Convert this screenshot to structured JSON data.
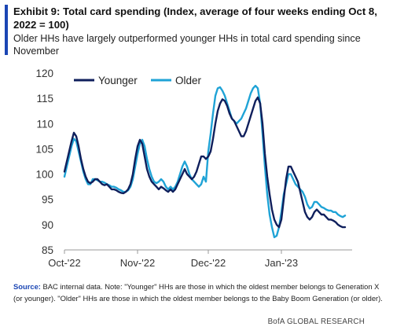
{
  "header": {
    "title": "Exhibit 9: Total card spending (Index, average of four weeks ending Oct 8, 2022 = 100)",
    "subtitle": "Older HHs have largely outperformed younger HHs in total card spending since November"
  },
  "footer": {
    "source_label": "Source:",
    "source_text": "BAC internal data. Note: \"Younger\" HHs are those in which the oldest member belongs to Generation X (or younger). \"Older\" HHs are those in which the oldest member belongs to the Baby Boom Generation (or older).",
    "credit": "BofA GLOBAL RESEARCH"
  },
  "colors": {
    "accent": "#1b46b4",
    "younger": "#0f1f5c",
    "older": "#1fa3d6",
    "axis_text": "#333333",
    "axis_line": "#999999"
  },
  "chart_data": {
    "type": "line",
    "x_type": "date",
    "xlabel": "",
    "ylabel": "",
    "ylim": [
      85,
      120
    ],
    "yticks": [
      85,
      90,
      95,
      100,
      105,
      110,
      115,
      120
    ],
    "xlim": [
      "2022-10-01",
      "2023-01-31"
    ],
    "xticks": [
      {
        "label": "Oct-'22",
        "date": "2022-10-01"
      },
      {
        "label": "Nov-'22",
        "date": "2022-11-01"
      },
      {
        "label": "Dec-'22",
        "date": "2022-12-01"
      },
      {
        "label": "Jan-'23",
        "date": "2023-01-01"
      }
    ],
    "grid": false,
    "legend": "top-left",
    "series": [
      {
        "name": "Younger",
        "color": "#0f1f5c",
        "points": [
          [
            "2022-10-01",
            100.5
          ],
          [
            "2022-10-02",
            102.5
          ],
          [
            "2022-10-03",
            104.5
          ],
          [
            "2022-10-04",
            106.5
          ],
          [
            "2022-10-05",
            108.2
          ],
          [
            "2022-10-06",
            107.5
          ],
          [
            "2022-10-07",
            105.5
          ],
          [
            "2022-10-08",
            103.0
          ],
          [
            "2022-10-09",
            101.0
          ],
          [
            "2022-10-10",
            99.5
          ],
          [
            "2022-10-11",
            98.5
          ],
          [
            "2022-10-12",
            98.2
          ],
          [
            "2022-10-13",
            98.5
          ],
          [
            "2022-10-14",
            99.0
          ],
          [
            "2022-10-15",
            99.0
          ],
          [
            "2022-10-16",
            98.5
          ],
          [
            "2022-10-17",
            98.0
          ],
          [
            "2022-10-18",
            97.8
          ],
          [
            "2022-10-19",
            98.0
          ],
          [
            "2022-10-20",
            97.5
          ],
          [
            "2022-10-21",
            97.0
          ],
          [
            "2022-10-22",
            97.0
          ],
          [
            "2022-10-23",
            96.8
          ],
          [
            "2022-10-24",
            96.5
          ],
          [
            "2022-10-25",
            96.3
          ],
          [
            "2022-10-26",
            96.2
          ],
          [
            "2022-10-27",
            96.5
          ],
          [
            "2022-10-28",
            97.0
          ],
          [
            "2022-10-29",
            98.0
          ],
          [
            "2022-10-30",
            100.0
          ],
          [
            "2022-10-31",
            103.0
          ],
          [
            "2022-11-01",
            105.5
          ],
          [
            "2022-11-02",
            106.8
          ],
          [
            "2022-11-03",
            106.0
          ],
          [
            "2022-11-04",
            103.5
          ],
          [
            "2022-11-05",
            101.0
          ],
          [
            "2022-11-06",
            99.5
          ],
          [
            "2022-11-07",
            98.5
          ],
          [
            "2022-11-08",
            98.0
          ],
          [
            "2022-11-09",
            97.5
          ],
          [
            "2022-11-10",
            97.0
          ],
          [
            "2022-11-11",
            97.5
          ],
          [
            "2022-11-12",
            97.2
          ],
          [
            "2022-11-13",
            96.8
          ],
          [
            "2022-11-14",
            96.5
          ],
          [
            "2022-11-15",
            97.0
          ],
          [
            "2022-11-16",
            96.5
          ],
          [
            "2022-11-17",
            97.0
          ],
          [
            "2022-11-18",
            98.0
          ],
          [
            "2022-11-19",
            99.0
          ],
          [
            "2022-11-20",
            100.0
          ],
          [
            "2022-11-21",
            101.0
          ],
          [
            "2022-11-22",
            100.0
          ],
          [
            "2022-11-23",
            99.5
          ],
          [
            "2022-11-24",
            99.0
          ],
          [
            "2022-11-25",
            99.5
          ],
          [
            "2022-11-26",
            100.5
          ],
          [
            "2022-11-27",
            102.0
          ],
          [
            "2022-11-28",
            103.5
          ],
          [
            "2022-11-29",
            103.5
          ],
          [
            "2022-11-30",
            103.0
          ],
          [
            "2022-12-01",
            103.5
          ],
          [
            "2022-12-02",
            104.5
          ],
          [
            "2022-12-03",
            107.0
          ],
          [
            "2022-12-04",
            110.0
          ],
          [
            "2022-12-05",
            112.5
          ],
          [
            "2022-12-06",
            114.0
          ],
          [
            "2022-12-07",
            114.8
          ],
          [
            "2022-12-08",
            114.5
          ],
          [
            "2022-12-09",
            113.5
          ],
          [
            "2022-12-10",
            112.0
          ],
          [
            "2022-12-11",
            111.0
          ],
          [
            "2022-12-12",
            110.5
          ],
          [
            "2022-12-13",
            109.5
          ],
          [
            "2022-12-14",
            108.5
          ],
          [
            "2022-12-15",
            107.5
          ],
          [
            "2022-12-16",
            107.5
          ],
          [
            "2022-12-17",
            108.5
          ],
          [
            "2022-12-18",
            110.0
          ],
          [
            "2022-12-19",
            111.5
          ],
          [
            "2022-12-20",
            113.0
          ],
          [
            "2022-12-21",
            114.5
          ],
          [
            "2022-12-22",
            115.2
          ],
          [
            "2022-12-23",
            114.0
          ],
          [
            "2022-12-24",
            110.0
          ],
          [
            "2022-12-25",
            104.0
          ],
          [
            "2022-12-26",
            99.5
          ],
          [
            "2022-12-27",
            96.0
          ],
          [
            "2022-12-28",
            93.0
          ],
          [
            "2022-12-29",
            91.0
          ],
          [
            "2022-12-30",
            90.0
          ],
          [
            "2022-12-31",
            89.5
          ],
          [
            "2023-01-01",
            91.0
          ],
          [
            "2023-01-02",
            95.0
          ],
          [
            "2023-01-03",
            99.0
          ],
          [
            "2023-01-04",
            101.5
          ],
          [
            "2023-01-05",
            101.5
          ],
          [
            "2023-01-06",
            100.5
          ],
          [
            "2023-01-07",
            99.5
          ],
          [
            "2023-01-08",
            98.5
          ],
          [
            "2023-01-09",
            96.5
          ],
          [
            "2023-01-10",
            94.5
          ],
          [
            "2023-01-11",
            92.5
          ],
          [
            "2023-01-12",
            91.5
          ],
          [
            "2023-01-13",
            91.0
          ],
          [
            "2023-01-14",
            91.5
          ],
          [
            "2023-01-15",
            92.5
          ],
          [
            "2023-01-16",
            93.0
          ],
          [
            "2023-01-17",
            92.5
          ],
          [
            "2023-01-18",
            92.0
          ],
          [
            "2023-01-19",
            92.0
          ],
          [
            "2023-01-20",
            91.5
          ],
          [
            "2023-01-21",
            91.0
          ],
          [
            "2023-01-22",
            91.0
          ],
          [
            "2023-01-23",
            90.8
          ],
          [
            "2023-01-24",
            90.5
          ],
          [
            "2023-01-25",
            90.0
          ],
          [
            "2023-01-26",
            89.7
          ],
          [
            "2023-01-27",
            89.5
          ],
          [
            "2023-01-28",
            89.5
          ]
        ]
      },
      {
        "name": "Older",
        "color": "#1fa3d6",
        "points": [
          [
            "2022-10-01",
            99.5
          ],
          [
            "2022-10-02",
            101.5
          ],
          [
            "2022-10-03",
            103.5
          ],
          [
            "2022-10-04",
            105.5
          ],
          [
            "2022-10-05",
            107.0
          ],
          [
            "2022-10-06",
            106.5
          ],
          [
            "2022-10-07",
            104.5
          ],
          [
            "2022-10-08",
            102.5
          ],
          [
            "2022-10-09",
            100.5
          ],
          [
            "2022-10-10",
            99.0
          ],
          [
            "2022-10-11",
            98.0
          ],
          [
            "2022-10-12",
            98.0
          ],
          [
            "2022-10-13",
            99.0
          ],
          [
            "2022-10-14",
            99.0
          ],
          [
            "2022-10-15",
            98.8
          ],
          [
            "2022-10-16",
            98.5
          ],
          [
            "2022-10-17",
            98.5
          ],
          [
            "2022-10-18",
            98.3
          ],
          [
            "2022-10-19",
            98.0
          ],
          [
            "2022-10-20",
            97.8
          ],
          [
            "2022-10-21",
            97.5
          ],
          [
            "2022-10-22",
            97.5
          ],
          [
            "2022-10-23",
            97.3
          ],
          [
            "2022-10-24",
            97.0
          ],
          [
            "2022-10-25",
            96.8
          ],
          [
            "2022-10-26",
            96.5
          ],
          [
            "2022-10-27",
            96.5
          ],
          [
            "2022-10-28",
            96.8
          ],
          [
            "2022-10-29",
            97.5
          ],
          [
            "2022-10-30",
            99.0
          ],
          [
            "2022-10-31",
            101.5
          ],
          [
            "2022-11-01",
            104.0
          ],
          [
            "2022-11-02",
            106.0
          ],
          [
            "2022-11-03",
            106.8
          ],
          [
            "2022-11-04",
            105.5
          ],
          [
            "2022-11-05",
            103.0
          ],
          [
            "2022-11-06",
            101.0
          ],
          [
            "2022-11-07",
            99.5
          ],
          [
            "2022-11-08",
            98.5
          ],
          [
            "2022-11-09",
            98.2
          ],
          [
            "2022-11-10",
            98.5
          ],
          [
            "2022-11-11",
            99.0
          ],
          [
            "2022-11-12",
            98.5
          ],
          [
            "2022-11-13",
            97.5
          ],
          [
            "2022-11-14",
            97.0
          ],
          [
            "2022-11-15",
            97.5
          ],
          [
            "2022-11-16",
            97.0
          ],
          [
            "2022-11-17",
            97.5
          ],
          [
            "2022-11-18",
            98.5
          ],
          [
            "2022-11-19",
            100.0
          ],
          [
            "2022-11-20",
            101.5
          ],
          [
            "2022-11-21",
            102.5
          ],
          [
            "2022-11-22",
            101.5
          ],
          [
            "2022-11-23",
            100.0
          ],
          [
            "2022-11-24",
            99.0
          ],
          [
            "2022-11-25",
            98.5
          ],
          [
            "2022-11-26",
            98.0
          ],
          [
            "2022-11-27",
            97.5
          ],
          [
            "2022-11-28",
            98.0
          ],
          [
            "2022-11-29",
            99.5
          ],
          [
            "2022-11-30",
            98.5
          ],
          [
            "2022-12-01",
            104.5
          ],
          [
            "2022-12-02",
            108.0
          ],
          [
            "2022-12-03",
            112.0
          ],
          [
            "2022-12-04",
            115.5
          ],
          [
            "2022-12-05",
            117.0
          ],
          [
            "2022-12-06",
            117.2
          ],
          [
            "2022-12-07",
            116.5
          ],
          [
            "2022-12-08",
            115.5
          ],
          [
            "2022-12-09",
            114.0
          ],
          [
            "2022-12-10",
            112.5
          ],
          [
            "2022-12-11",
            111.0
          ],
          [
            "2022-12-12",
            110.5
          ],
          [
            "2022-12-13",
            110.0
          ],
          [
            "2022-12-14",
            110.5
          ],
          [
            "2022-12-15",
            111.0
          ],
          [
            "2022-12-16",
            112.0
          ],
          [
            "2022-12-17",
            113.0
          ],
          [
            "2022-12-18",
            114.5
          ],
          [
            "2022-12-19",
            116.0
          ],
          [
            "2022-12-20",
            117.0
          ],
          [
            "2022-12-21",
            117.5
          ],
          [
            "2022-12-22",
            117.0
          ],
          [
            "2022-12-23",
            114.0
          ],
          [
            "2022-12-24",
            108.0
          ],
          [
            "2022-12-25",
            101.5
          ],
          [
            "2022-12-26",
            96.0
          ],
          [
            "2022-12-27",
            92.0
          ],
          [
            "2022-12-28",
            89.5
          ],
          [
            "2022-12-29",
            87.5
          ],
          [
            "2022-12-30",
            87.8
          ],
          [
            "2022-12-31",
            89.5
          ],
          [
            "2023-01-01",
            92.5
          ],
          [
            "2023-01-02",
            96.0
          ],
          [
            "2023-01-03",
            98.0
          ],
          [
            "2023-01-04",
            100.0
          ],
          [
            "2023-01-05",
            100.0
          ],
          [
            "2023-01-06",
            99.0
          ],
          [
            "2023-01-07",
            98.0
          ],
          [
            "2023-01-08",
            97.5
          ],
          [
            "2023-01-09",
            97.0
          ],
          [
            "2023-01-10",
            96.5
          ],
          [
            "2023-01-11",
            95.5
          ],
          [
            "2023-01-12",
            94.0
          ],
          [
            "2023-01-13",
            93.2
          ],
          [
            "2023-01-14",
            93.5
          ],
          [
            "2023-01-15",
            94.5
          ],
          [
            "2023-01-16",
            94.5
          ],
          [
            "2023-01-17",
            94.0
          ],
          [
            "2023-01-18",
            93.5
          ],
          [
            "2023-01-19",
            93.3
          ],
          [
            "2023-01-20",
            93.0
          ],
          [
            "2023-01-21",
            92.8
          ],
          [
            "2023-01-22",
            92.8
          ],
          [
            "2023-01-23",
            92.5
          ],
          [
            "2023-01-24",
            92.5
          ],
          [
            "2023-01-25",
            92.0
          ],
          [
            "2023-01-26",
            91.7
          ],
          [
            "2023-01-27",
            91.5
          ],
          [
            "2023-01-28",
            91.8
          ]
        ]
      }
    ]
  }
}
